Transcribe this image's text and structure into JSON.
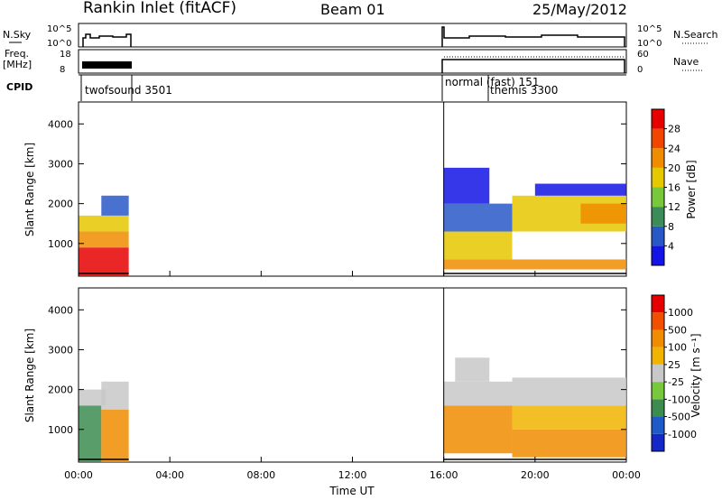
{
  "header": {
    "station": "Rankin Inlet (fitACF)",
    "beam": "Beam 01",
    "date": "25/May/2012"
  },
  "top_panels": {
    "nsky_label": "N.Sky",
    "nsky_ticks": [
      "10^5",
      "10^0"
    ],
    "nsearch_label": "N.Search",
    "nsearch_ticks": [
      "10^5",
      "10^0"
    ],
    "freq_label": "Freq.",
    "freq_unit": "[MHz]",
    "freq_ticks": [
      "18",
      "8"
    ],
    "nave_label": "Nave",
    "nave_ticks": [
      "60",
      "0"
    ],
    "cpid_label": "CPID",
    "cpid_modes": [
      {
        "label": "twofsound 3501",
        "start_hour": 0.0,
        "end_hour": 2.2
      },
      {
        "label": "normal (fast) 151",
        "start_hour": 16.0,
        "end_hour": 24.0
      },
      {
        "label": "themis 3300",
        "start_hour": 18.0,
        "end_hour": 24.0
      }
    ]
  },
  "chart_data": [
    {
      "type": "heatmap",
      "name": "power",
      "ylabel": "Slant Range [km]",
      "ylim": [
        180,
        4550
      ],
      "yticks": [
        1000,
        2000,
        3000,
        4000
      ],
      "xlim": [
        0,
        24
      ],
      "xticks": [
        "00:00",
        "04:00",
        "08:00",
        "12:00",
        "16:00",
        "20:00",
        "00:00"
      ],
      "colorbar": {
        "label": "Power [dB]",
        "ticks": [
          "4",
          "8",
          "12",
          "16",
          "20",
          "24",
          "28"
        ],
        "colors": [
          "#1414e6",
          "#2858c8",
          "#3c8c5a",
          "#78c83c",
          "#e6c800",
          "#f08c00",
          "#f04600",
          "#e60000"
        ]
      },
      "data_intervals_hours": [
        [
          0.0,
          2.2
        ],
        [
          16.0,
          24.0
        ]
      ],
      "regions": [
        {
          "t0": 0.0,
          "t1": 2.2,
          "r0": 180,
          "r1": 900,
          "level": 7
        },
        {
          "t0": 0.0,
          "t1": 2.2,
          "r0": 900,
          "r1": 1300,
          "level": 5
        },
        {
          "t0": 0.0,
          "t1": 2.2,
          "r0": 1300,
          "r1": 1700,
          "level": 4
        },
        {
          "t0": 1.0,
          "t1": 2.2,
          "r0": 1700,
          "r1": 2200,
          "level": 1
        },
        {
          "t0": 16.0,
          "t1": 24.0,
          "r0": 350,
          "r1": 600,
          "level": 5
        },
        {
          "t0": 16.0,
          "t1": 19.0,
          "r0": 600,
          "r1": 1300,
          "level": 4
        },
        {
          "t0": 16.0,
          "t1": 19.0,
          "r0": 1300,
          "r1": 2000,
          "level": 1
        },
        {
          "t0": 16.0,
          "t1": 18.0,
          "r0": 2000,
          "r1": 2900,
          "level": 0
        },
        {
          "t0": 19.0,
          "t1": 24.0,
          "r0": 1300,
          "r1": 2200,
          "level": 4
        },
        {
          "t0": 20.0,
          "t1": 24.0,
          "r0": 2200,
          "r1": 2500,
          "level": 0
        },
        {
          "t0": 22.0,
          "t1": 24.0,
          "r0": 1500,
          "r1": 2000,
          "level": 5
        }
      ]
    },
    {
      "type": "heatmap",
      "name": "velocity",
      "ylabel": "Slant Range [km]",
      "ylim": [
        180,
        4550
      ],
      "yticks": [
        1000,
        2000,
        3000,
        4000
      ],
      "xlim": [
        0,
        24
      ],
      "xticks": [
        "00:00",
        "04:00",
        "08:00",
        "12:00",
        "16:00",
        "20:00",
        "00:00"
      ],
      "xlabel": "Time UT",
      "colorbar": {
        "label": "Velocity [m s⁻¹]",
        "ticks": [
          "1000",
          "500",
          "100",
          "25",
          "-25",
          "-100",
          "-500",
          "-1000"
        ],
        "colors": [
          "#1428c8",
          "#1e5ac8",
          "#3c8c50",
          "#78c83c",
          "#c8c8c8",
          "#f0b400",
          "#f08c00",
          "#f05000",
          "#e60000"
        ]
      },
      "data_intervals_hours": [
        [
          0.0,
          2.2
        ],
        [
          16.0,
          24.0
        ]
      ],
      "regions": [
        {
          "t0": 0.0,
          "t1": 1.0,
          "r0": 180,
          "r1": 1600,
          "level": 2
        },
        {
          "t0": 0.0,
          "t1": 1.2,
          "r0": 1600,
          "r1": 2000,
          "level": 4
        },
        {
          "t0": 1.0,
          "t1": 2.2,
          "r0": 180,
          "r1": 1500,
          "level": 6
        },
        {
          "t0": 1.0,
          "t1": 2.2,
          "r0": 1500,
          "r1": 2200,
          "level": 4
        },
        {
          "t0": 16.0,
          "t1": 19.0,
          "r0": 400,
          "r1": 1600,
          "level": 6
        },
        {
          "t0": 16.0,
          "t1": 19.0,
          "r0": 1600,
          "r1": 2200,
          "level": 4
        },
        {
          "t0": 16.5,
          "t1": 18.0,
          "r0": 2200,
          "r1": 2800,
          "level": 4
        },
        {
          "t0": 19.0,
          "t1": 24.0,
          "r0": 300,
          "r1": 1000,
          "level": 6
        },
        {
          "t0": 19.0,
          "t1": 24.0,
          "r0": 1000,
          "r1": 1600,
          "level": 5
        },
        {
          "t0": 19.0,
          "t1": 24.0,
          "r0": 1600,
          "r1": 2300,
          "level": 4
        }
      ]
    }
  ]
}
